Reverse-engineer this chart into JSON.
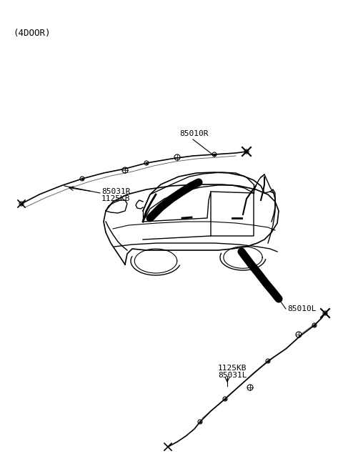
{
  "title": "(4DOOR)",
  "bg_color": "#ffffff",
  "line_color": "#000000",
  "thick_line_color": "#000000",
  "label_color": "#000000",
  "labels": {
    "top_right_part": "85010R",
    "top_left_part1": "85031R",
    "top_left_part2": "1125KB",
    "bottom_right_part": "85010L",
    "bottom_left_part1": "1125KB",
    "bottom_left_part2": "85031L"
  },
  "figsize": [
    4.8,
    6.56
  ],
  "dpi": 100
}
